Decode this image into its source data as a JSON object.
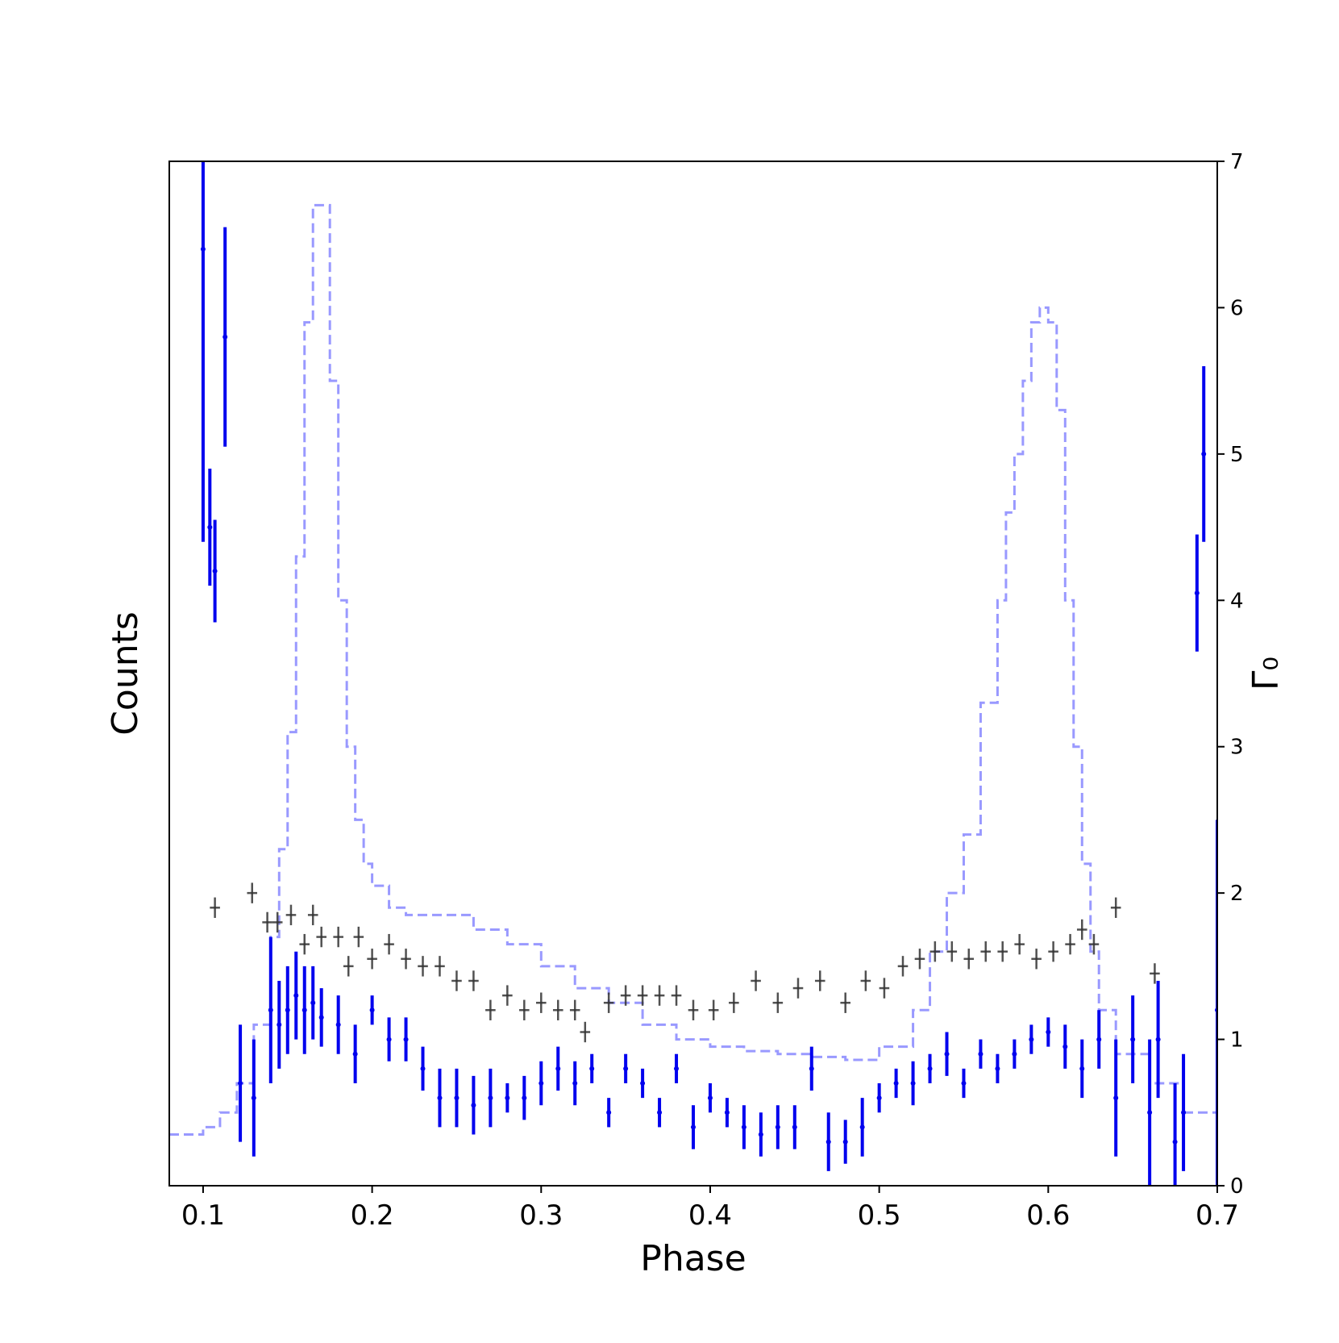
{
  "chart_data": {
    "type": "errorbar",
    "xlabel": "Phase",
    "ylabel": "Counts",
    "y2label": "Γ₀",
    "xlim": [
      0.08,
      0.7
    ],
    "xticks": [
      0.1,
      0.2,
      0.3,
      0.4,
      0.5,
      0.6,
      0.7
    ],
    "ylim": [
      0,
      7
    ],
    "y2lim": [
      0,
      7
    ],
    "y2ticks": [
      0,
      1,
      2,
      3,
      4,
      5,
      6,
      7
    ],
    "series": [
      {
        "type": "step",
        "axis": "y",
        "color": "#9999ff",
        "dashed": true,
        "x": [
          0.08,
          0.1,
          0.11,
          0.12,
          0.13,
          0.14,
          0.145,
          0.15,
          0.155,
          0.16,
          0.165,
          0.17,
          0.175,
          0.18,
          0.185,
          0.19,
          0.195,
          0.2,
          0.21,
          0.22,
          0.24,
          0.26,
          0.28,
          0.3,
          0.32,
          0.34,
          0.36,
          0.38,
          0.4,
          0.42,
          0.44,
          0.46,
          0.48,
          0.5,
          0.52,
          0.53,
          0.54,
          0.55,
          0.56,
          0.57,
          0.575,
          0.58,
          0.585,
          0.59,
          0.595,
          0.6,
          0.605,
          0.61,
          0.615,
          0.62,
          0.625,
          0.63,
          0.64,
          0.66,
          0.68,
          0.7
        ],
        "values": [
          0.35,
          0.4,
          0.5,
          0.7,
          1.1,
          1.7,
          2.3,
          3.1,
          4.3,
          5.9,
          6.7,
          6.7,
          5.5,
          4.0,
          3.0,
          2.5,
          2.2,
          2.05,
          1.9,
          1.85,
          1.85,
          1.75,
          1.65,
          1.5,
          1.35,
          1.25,
          1.1,
          1.0,
          0.95,
          0.92,
          0.9,
          0.88,
          0.86,
          0.95,
          1.2,
          1.6,
          2.0,
          2.4,
          3.3,
          4.0,
          4.6,
          5.0,
          5.5,
          5.9,
          6.0,
          5.9,
          5.3,
          4.0,
          3.0,
          2.2,
          1.6,
          1.2,
          0.9,
          0.7,
          0.5,
          0.4
        ]
      },
      {
        "type": "cross",
        "axis": "y2",
        "color": "#333333",
        "xerr": 0.003,
        "yerr": 0.07,
        "x": [
          0.107,
          0.129,
          0.138,
          0.144,
          0.152,
          0.16,
          0.165,
          0.17,
          0.18,
          0.186,
          0.192,
          0.2,
          0.21,
          0.22,
          0.23,
          0.24,
          0.25,
          0.26,
          0.27,
          0.28,
          0.29,
          0.3,
          0.31,
          0.32,
          0.326,
          0.34,
          0.35,
          0.36,
          0.37,
          0.38,
          0.39,
          0.402,
          0.414,
          0.427,
          0.44,
          0.452,
          0.465,
          0.48,
          0.492,
          0.503,
          0.514,
          0.524,
          0.533,
          0.543,
          0.553,
          0.563,
          0.573,
          0.583,
          0.593,
          0.603,
          0.613,
          0.62,
          0.627,
          0.64,
          0.663
        ],
        "values": [
          1.9,
          2.0,
          1.8,
          1.8,
          1.85,
          1.65,
          1.85,
          1.7,
          1.7,
          1.5,
          1.7,
          1.55,
          1.65,
          1.55,
          1.5,
          1.5,
          1.4,
          1.4,
          1.2,
          1.3,
          1.2,
          1.25,
          1.2,
          1.2,
          1.05,
          1.25,
          1.3,
          1.3,
          1.3,
          1.3,
          1.2,
          1.2,
          1.25,
          1.4,
          1.25,
          1.35,
          1.4,
          1.25,
          1.4,
          1.35,
          1.5,
          1.55,
          1.6,
          1.6,
          1.55,
          1.6,
          1.6,
          1.65,
          1.55,
          1.6,
          1.65,
          1.75,
          1.65,
          1.9,
          1.45
        ]
      },
      {
        "type": "bar-error",
        "axis": "y2",
        "color": "#0000ee",
        "x": [
          0.1,
          0.104,
          0.107,
          0.113,
          0.122,
          0.13,
          0.14,
          0.145,
          0.15,
          0.155,
          0.16,
          0.165,
          0.17,
          0.18,
          0.19,
          0.2,
          0.21,
          0.22,
          0.23,
          0.24,
          0.25,
          0.26,
          0.27,
          0.28,
          0.29,
          0.3,
          0.31,
          0.32,
          0.33,
          0.34,
          0.35,
          0.36,
          0.37,
          0.38,
          0.39,
          0.4,
          0.41,
          0.42,
          0.43,
          0.44,
          0.45,
          0.46,
          0.47,
          0.48,
          0.49,
          0.5,
          0.51,
          0.52,
          0.53,
          0.54,
          0.55,
          0.56,
          0.57,
          0.58,
          0.59,
          0.6,
          0.61,
          0.62,
          0.63,
          0.64,
          0.65,
          0.66,
          0.665,
          0.675,
          0.68,
          0.688,
          0.692,
          0.7
        ],
        "values": [
          6.4,
          4.5,
          4.2,
          5.8,
          0.7,
          0.6,
          1.2,
          1.1,
          1.2,
          1.3,
          1.2,
          1.25,
          1.15,
          1.1,
          0.9,
          1.2,
          1.0,
          1.0,
          0.8,
          0.6,
          0.6,
          0.55,
          0.6,
          0.6,
          0.6,
          0.7,
          0.8,
          0.7,
          0.8,
          0.5,
          0.8,
          0.7,
          0.5,
          0.8,
          0.4,
          0.6,
          0.5,
          0.4,
          0.35,
          0.4,
          0.4,
          0.8,
          0.3,
          0.3,
          0.4,
          0.6,
          0.7,
          0.7,
          0.8,
          0.9,
          0.7,
          0.9,
          0.8,
          0.9,
          1.0,
          1.05,
          0.95,
          0.8,
          1.0,
          0.6,
          1.0,
          0.5,
          1.0,
          0.3,
          0.5,
          4.05,
          5.0,
          1.2
        ],
        "yerr": [
          2.0,
          0.4,
          0.35,
          0.75,
          0.4,
          0.4,
          0.5,
          0.3,
          0.3,
          0.3,
          0.3,
          0.25,
          0.2,
          0.2,
          0.2,
          0.1,
          0.15,
          0.15,
          0.15,
          0.2,
          0.2,
          0.2,
          0.2,
          0.1,
          0.15,
          0.15,
          0.15,
          0.15,
          0.1,
          0.1,
          0.1,
          0.1,
          0.1,
          0.1,
          0.15,
          0.1,
          0.1,
          0.15,
          0.15,
          0.15,
          0.15,
          0.15,
          0.2,
          0.15,
          0.2,
          0.1,
          0.1,
          0.15,
          0.1,
          0.15,
          0.1,
          0.1,
          0.1,
          0.1,
          0.1,
          0.1,
          0.15,
          0.2,
          0.2,
          0.4,
          0.3,
          0.5,
          0.4,
          0.4,
          0.4,
          0.4,
          0.6,
          1.3
        ]
      }
    ]
  }
}
